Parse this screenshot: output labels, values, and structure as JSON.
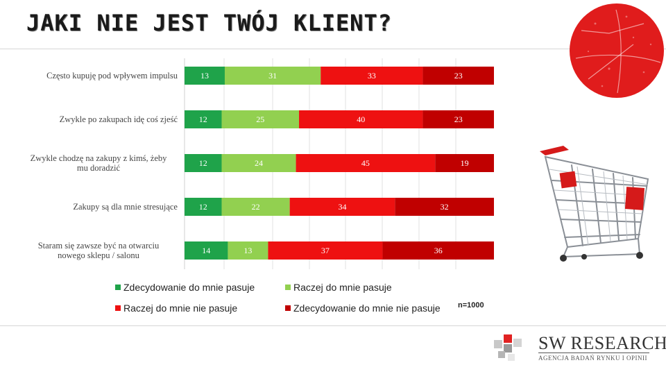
{
  "title": "JAKI NIE JEST TWÓJ KLIENT?",
  "n_label": "n=1000",
  "logo": {
    "name": "SW RESEARCH",
    "subtitle": "AGENCJA BADAŃ RYNKU I OPINII"
  },
  "colors": {
    "strong_fit": "#1fa34a",
    "rather_fit": "#92d050",
    "rather_not_fit": "#ee1111",
    "strong_not_fit": "#c00000",
    "badge": "#e01c1c"
  },
  "icons": [
    "red-circle-badge",
    "shopping-cart-icon",
    "sw-research-logo"
  ],
  "chart_data": {
    "type": "bar",
    "orientation": "horizontal",
    "stacked": true,
    "percent": true,
    "categories": [
      "Często kupuję pod wpływem impulsu",
      "Zwykle po zakupach idę coś zjeść",
      "Zwykle chodzę na zakupy z kimś, żeby mu doradzić",
      "Zakupy są dla mnie stresujące",
      "Staram się zawsze być na otwarciu nowego sklepu / salonu"
    ],
    "series": [
      {
        "name": "Zdecydowanie do mnie pasuje",
        "color": "#1fa34a",
        "values": [
          13,
          12,
          12,
          12,
          14
        ]
      },
      {
        "name": "Raczej do mnie pasuje",
        "color": "#92d050",
        "values": [
          31,
          25,
          24,
          22,
          13
        ]
      },
      {
        "name": "Raczej do mnie nie pasuje",
        "color": "#ee1111",
        "values": [
          33,
          40,
          45,
          34,
          37
        ]
      },
      {
        "name": "Zdecydowanie do mnie nie pasuje",
        "color": "#c00000",
        "values": [
          23,
          23,
          19,
          32,
          36
        ]
      }
    ],
    "xlim": [
      0,
      100
    ],
    "grid": true,
    "legend_position": "bottom"
  }
}
